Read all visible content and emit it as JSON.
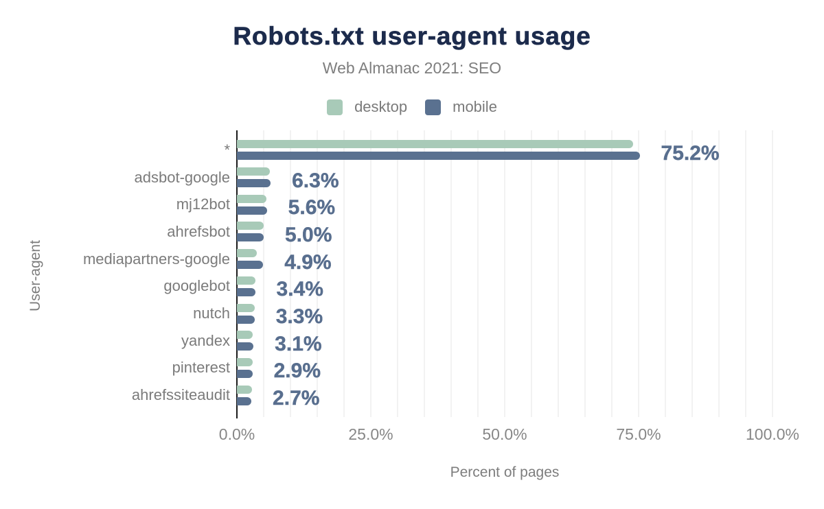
{
  "chart_data": {
    "type": "bar",
    "orientation": "horizontal",
    "title": "Robots.txt user-agent usage",
    "subtitle": "Web Almanac 2021: SEO",
    "xlabel": "Percent of pages",
    "ylabel": "User-agent",
    "categories": [
      "*",
      "adsbot-google",
      "mj12bot",
      "ahrefsbot",
      "mediapartners-google",
      "googlebot",
      "nutch",
      "yandex",
      "pinterest",
      "ahrefssiteaudit"
    ],
    "series": [
      {
        "name": "desktop",
        "color": "#a8cab8",
        "values": [
          74.0,
          6.2,
          5.5,
          5.0,
          3.7,
          3.5,
          3.3,
          3.0,
          2.9,
          2.8
        ]
      },
      {
        "name": "mobile",
        "color": "#5a7190",
        "values": [
          75.2,
          6.3,
          5.6,
          5.0,
          4.9,
          3.4,
          3.3,
          3.1,
          2.9,
          2.7
        ]
      }
    ],
    "value_labels": [
      "75.2%",
      "6.3%",
      "5.6%",
      "5.0%",
      "4.9%",
      "3.4%",
      "3.3%",
      "3.1%",
      "2.9%",
      "2.7%"
    ],
    "value_label_series": "mobile",
    "x_ticks": [
      {
        "label": "0.0%",
        "value": 0
      },
      {
        "label": "25.0%",
        "value": 25
      },
      {
        "label": "50.0%",
        "value": 50
      },
      {
        "label": "75.0%",
        "value": 75
      },
      {
        "label": "100.0%",
        "value": 100
      }
    ],
    "xlim": [
      0,
      100
    ],
    "grid": {
      "show": true,
      "step_pct": 5,
      "color": "#f2f2f2"
    },
    "legend_position": "top",
    "colors": {
      "title": "#1c2b4c",
      "subtitle": "#7e7e7e",
      "value_label": "#586e8e",
      "axis_line": "#1b1b1b",
      "tick_label": "#878787",
      "background": "#ffffff"
    }
  }
}
